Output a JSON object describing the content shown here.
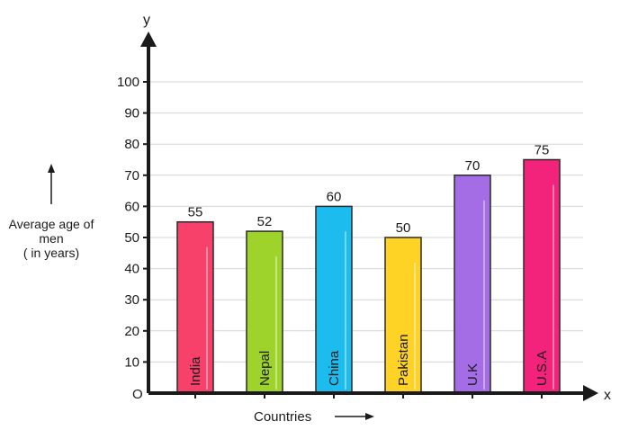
{
  "chart_data": {
    "type": "bar",
    "categories": [
      "India",
      "Nepal",
      "China",
      "Pakistan",
      "U.K",
      "U.S.A"
    ],
    "values": [
      55,
      52,
      60,
      50,
      70,
      75
    ],
    "colors": [
      "#f7416b",
      "#9ed32b",
      "#1cbcef",
      "#fed325",
      "#a46de6",
      "#f3237b"
    ],
    "xlabel": "Countries",
    "ylabel_lines": [
      "Average age of",
      "men",
      "( in years)"
    ],
    "x_axis_letter": "x",
    "y_axis_letter": "y",
    "origin_label": "O",
    "ylim": [
      0,
      100
    ],
    "yticks": [
      10,
      20,
      30,
      40,
      50,
      60,
      70,
      80,
      90,
      100
    ],
    "grid": true,
    "bar_labels_inside": true,
    "value_labels_on_top": true
  }
}
